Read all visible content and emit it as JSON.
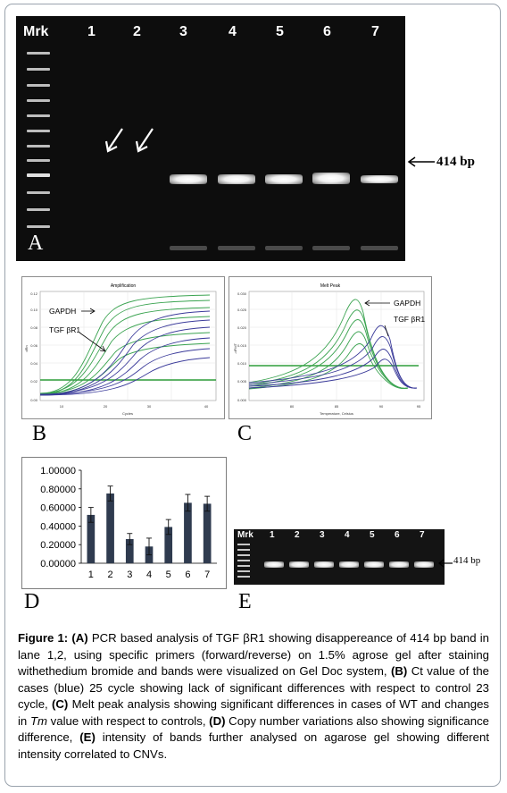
{
  "panel_a": {
    "lane_labels": [
      "Mrk",
      "1",
      "2",
      "3",
      "4",
      "5",
      "6",
      "7"
    ],
    "band_size_label": "414 bp",
    "panel_letter": "A"
  },
  "panel_b": {
    "panel_letter": "B",
    "plot_title": "Amplification",
    "xlabel": "Cycles",
    "ylabel": "dRn",
    "annotations": [
      "GAPDH",
      "TGF βR1"
    ],
    "x_ticks": [
      "10",
      "20",
      "30",
      "40"
    ],
    "y_ticks": [
      "0.00",
      "0.02",
      "0.04",
      "0.06",
      "0.08",
      "0.10",
      "0.12"
    ]
  },
  "panel_c": {
    "panel_letter": "C",
    "plot_title": "Melt Peak",
    "xlabel": "Temperature, Celsius",
    "ylabel": "-dF/dT",
    "annotations": [
      "GAPDH",
      "TGF βR1"
    ],
    "x_ticks": [
      "80",
      "85",
      "90",
      "95"
    ],
    "y_ticks": [
      "0.000",
      "0.005",
      "0.010",
      "0.015",
      "0.020",
      "0.025",
      "0.030"
    ]
  },
  "panel_d": {
    "panel_letter": "D"
  },
  "panel_e": {
    "panel_letter": "E",
    "lane_labels": [
      "Mrk",
      "1",
      "2",
      "3",
      "4",
      "5",
      "6",
      "7"
    ],
    "band_size_label": "414 bp"
  },
  "chart_data": {
    "type": "bar",
    "categories": [
      "1",
      "2",
      "3",
      "4",
      "5",
      "6",
      "7"
    ],
    "values": [
      0.52,
      0.75,
      0.26,
      0.18,
      0.39,
      0.65,
      0.64
    ],
    "errors": [
      0.08,
      0.08,
      0.06,
      0.09,
      0.08,
      0.09,
      0.08
    ],
    "y_ticks": [
      "0.00000",
      "0.20000",
      "0.40000",
      "0.60000",
      "0.80000",
      "1.00000"
    ],
    "ylim": [
      0,
      1.0
    ],
    "bar_color": "#2f3b4f",
    "title": "",
    "xlabel": "",
    "ylabel": ""
  },
  "caption": {
    "lead": "Figure 1:",
    "a_tag": "(A)",
    "a_text": " PCR based analysis of TGF βR1 showing disappereance of 414 bp band in lane 1,2, using  specific primers (forward/reverse)  on 1.5% agrose gel after staining withethedium bromide and bands were visualized on Gel Doc system, ",
    "b_tag": "(B)",
    "b_text": " Ct value of the cases (blue) 25 cycle showing lack of significant differences with respect to control 23 cycle, ",
    "c_tag": "(C)",
    "c_text": "  Melt peak analysis showing significant differences in cases of WT and changes in ",
    "tm": "Tm",
    "c_text2": " value with respect to controls, ",
    "d_tag": "(D)",
    "d_text": " Copy number variations also showing significance difference, ",
    "e_tag": "(E)",
    "e_text": " intensity of bands further analysed on agarose gel showing different intensity correlated to CNVs."
  },
  "colors": {
    "green_curves": "#3aa350",
    "blue_curves": "#3b3b9a",
    "threshold": "#2e9e3a"
  }
}
